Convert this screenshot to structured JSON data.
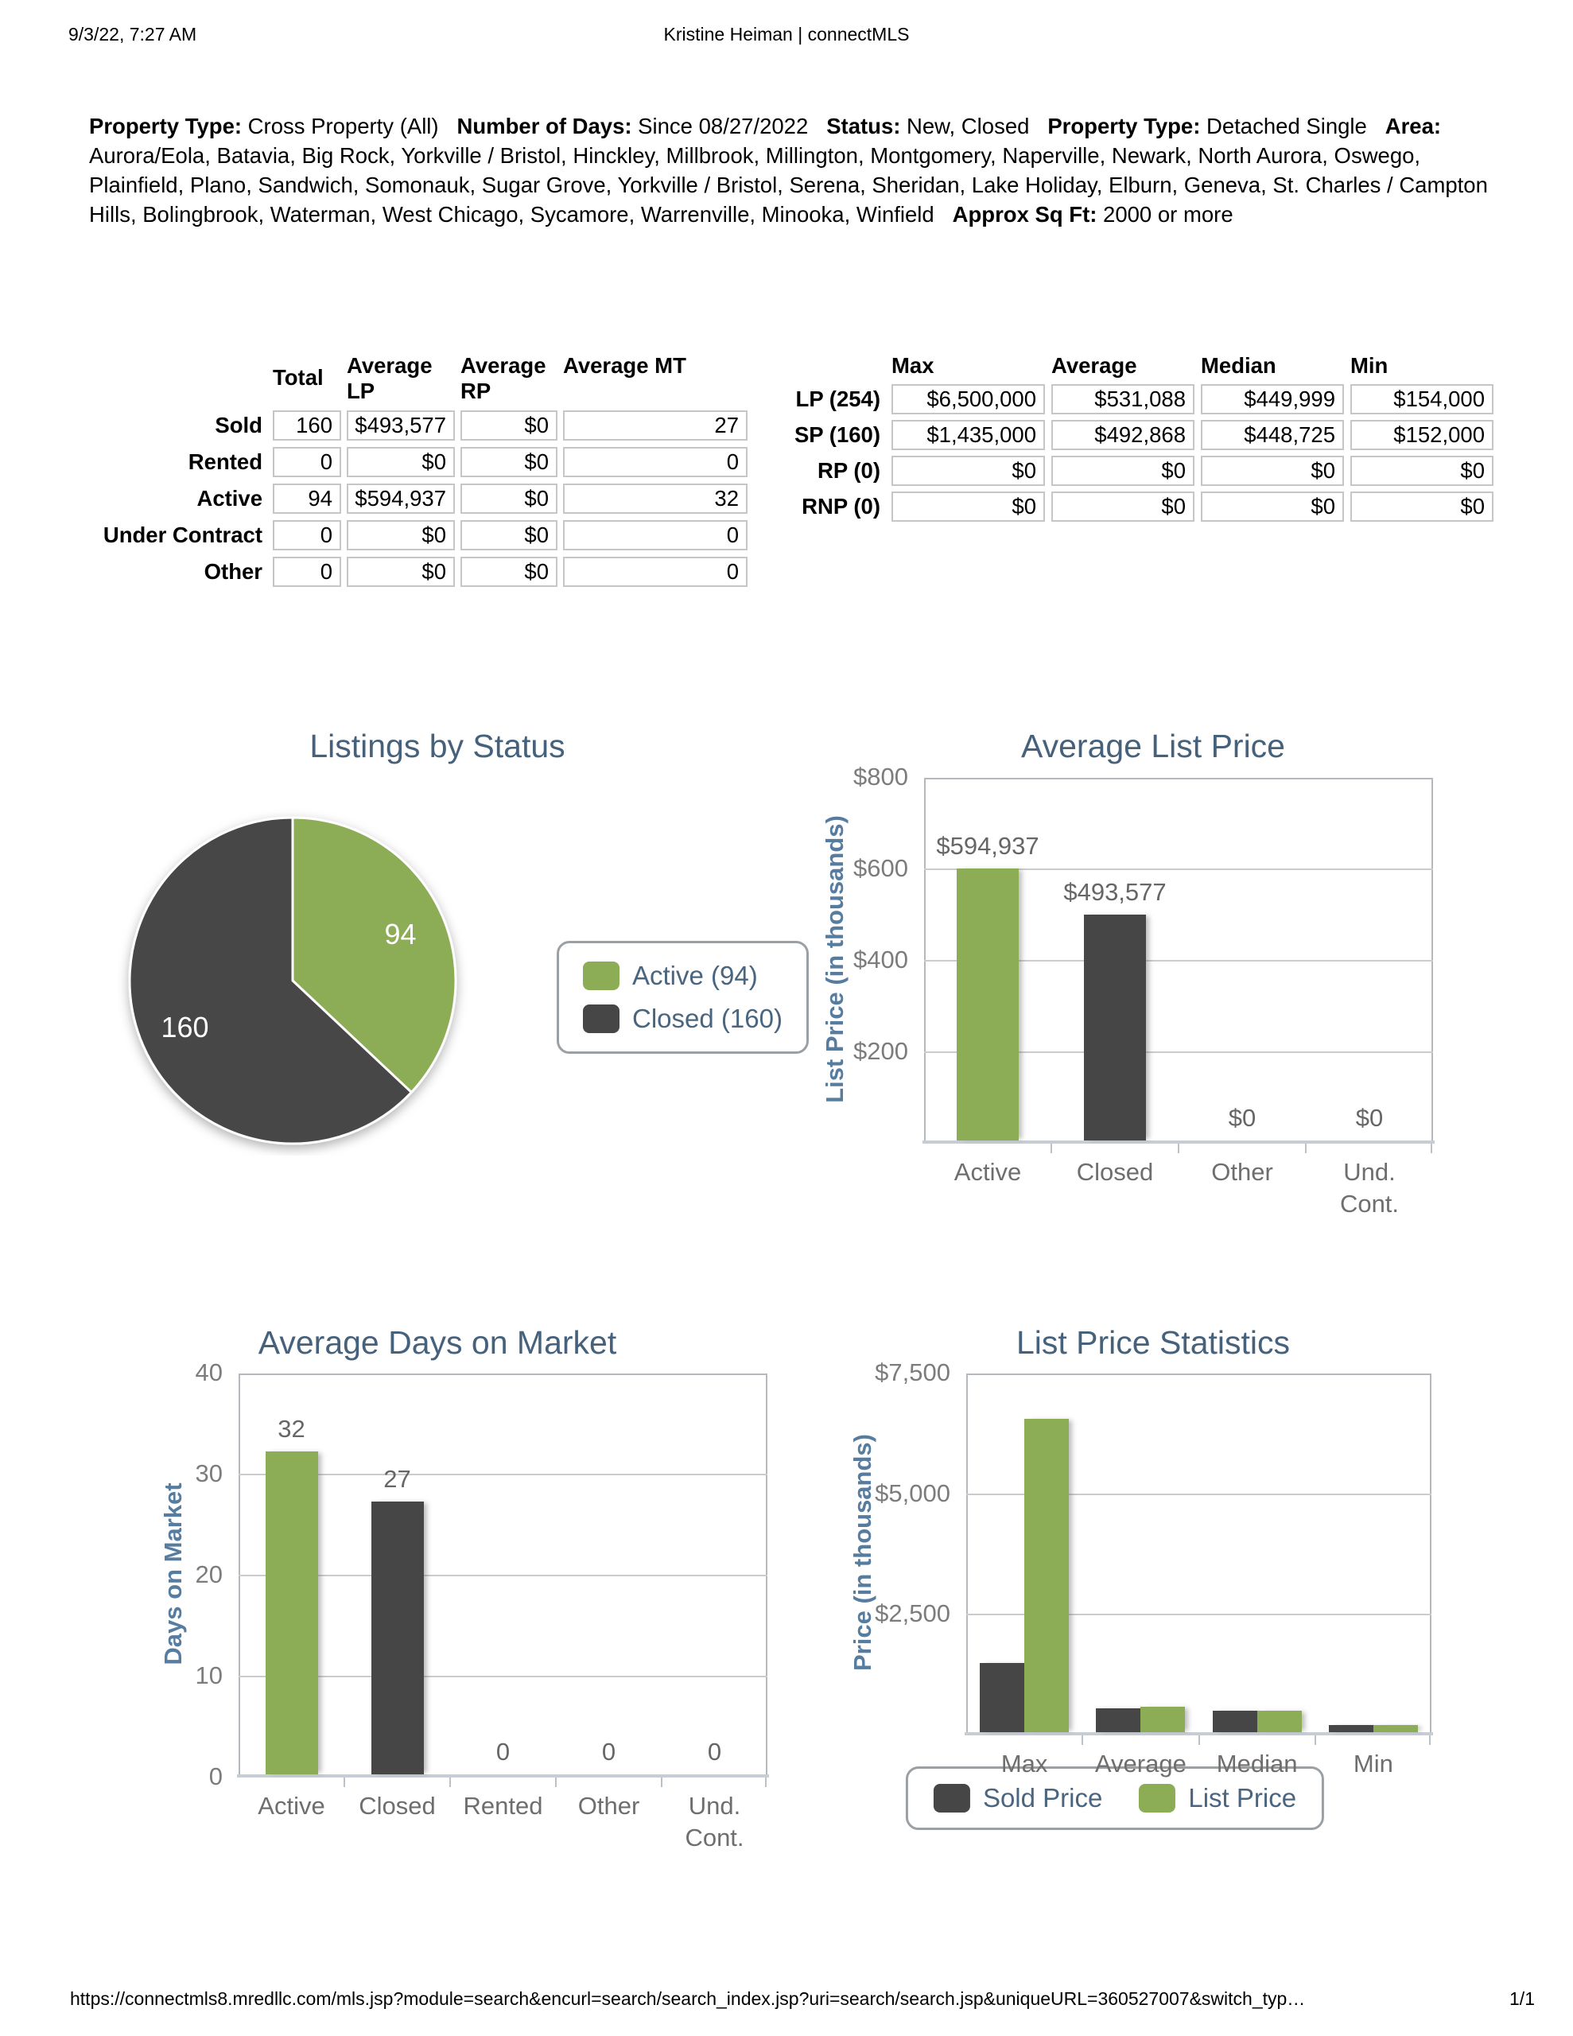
{
  "header": {
    "datetime": "9/3/22, 7:27 AM",
    "user_app": "Kristine Heiman | connectMLS"
  },
  "criteria": [
    {
      "label": "Property Type:",
      "value": "Cross Property (All)"
    },
    {
      "label": "Number of Days:",
      "value": "Since 08/27/2022"
    },
    {
      "label": "Status:",
      "value": "New, Closed"
    },
    {
      "label": "Property Type:",
      "value": "Detached Single"
    },
    {
      "label": "Area:",
      "value": "Aurora/Eola, Batavia, Big Rock, Yorkville / Bristol, Hinckley, Millbrook, Millington, Montgomery, Naperville, Newark, North Aurora, Oswego, Plainfield, Plano, Sandwich, Somonauk, Sugar Grove, Yorkville / Bristol, Serena, Sheridan, Lake Holiday, Elburn, Geneva, St. Charles / Campton Hills, Bolingbrook, Waterman, West Chicago, Sycamore, Warrenville, Minooka, Winfield"
    },
    {
      "label": "Approx Sq Ft:",
      "value": "2000 or more"
    }
  ],
  "status_table": {
    "columns": [
      "Total",
      "Average LP",
      "Average RP",
      "Average MT"
    ],
    "rows": [
      {
        "label": "Sold",
        "values": [
          "160",
          "$493,577",
          "$0",
          "27"
        ]
      },
      {
        "label": "Rented",
        "values": [
          "0",
          "$0",
          "$0",
          "0"
        ]
      },
      {
        "label": "Active",
        "values": [
          "94",
          "$594,937",
          "$0",
          "32"
        ]
      },
      {
        "label": "Under Contract",
        "values": [
          "0",
          "$0",
          "$0",
          "0"
        ]
      },
      {
        "label": "Other",
        "values": [
          "0",
          "$0",
          "$0",
          "0"
        ]
      }
    ]
  },
  "price_table": {
    "columns": [
      "Max",
      "Average",
      "Median",
      "Min"
    ],
    "rows": [
      {
        "label": "LP (254)",
        "values": [
          "$6,500,000",
          "$531,088",
          "$449,999",
          "$154,000"
        ]
      },
      {
        "label": "SP (160)",
        "values": [
          "$1,435,000",
          "$492,868",
          "$448,725",
          "$152,000"
        ]
      },
      {
        "label": "RP (0)",
        "values": [
          "$0",
          "$0",
          "$0",
          "$0"
        ]
      },
      {
        "label": "RNP (0)",
        "values": [
          "$0",
          "$0",
          "$0",
          "$0"
        ]
      }
    ]
  },
  "colors": {
    "green": "#8DAC56",
    "dark": "#464646",
    "title_blue": "#45617C",
    "axis_blue": "#567CA0",
    "tick_gray": "#7c7c7c"
  },
  "chart_data": [
    {
      "type": "pie",
      "title": "Listings by Status",
      "labels": [
        "Active",
        "Closed"
      ],
      "values": [
        94,
        160
      ],
      "slice_labels": [
        "94",
        "160"
      ],
      "colors": [
        "green",
        "dark"
      ],
      "legend": [
        {
          "label": "Active (94)",
          "color": "green"
        },
        {
          "label": "Closed (160)",
          "color": "dark"
        }
      ],
      "legend_position": "right"
    },
    {
      "type": "bar",
      "title": "Average List Price",
      "ylabel": "List Price (in thousands)",
      "categories": [
        "Active",
        "Closed",
        "Other",
        "Und.\nCont."
      ],
      "values": [
        594.937,
        493.577,
        0,
        0
      ],
      "data_labels": [
        "$594,937",
        "$493,577",
        "$0",
        "$0"
      ],
      "colors": [
        "green",
        "dark",
        "green",
        "dark"
      ],
      "ylim": [
        0,
        800
      ],
      "yticks": [
        {
          "v": 200,
          "t": "$200"
        },
        {
          "v": 400,
          "t": "$400"
        },
        {
          "v": 600,
          "t": "$600"
        },
        {
          "v": 800,
          "t": "$800"
        }
      ],
      "grid": true
    },
    {
      "type": "bar",
      "title": "Average Days on Market",
      "ylabel": "Days on Market",
      "categories": [
        "Active",
        "Closed",
        "Rented",
        "Other",
        "Und.\nCont."
      ],
      "values": [
        32,
        27,
        0,
        0,
        0
      ],
      "data_labels": [
        "32",
        "27",
        "0",
        "0",
        "0"
      ],
      "colors": [
        "green",
        "dark",
        "green",
        "dark",
        "green"
      ],
      "ylim": [
        0,
        40
      ],
      "yticks": [
        {
          "v": 0,
          "t": "0"
        },
        {
          "v": 10,
          "t": "10"
        },
        {
          "v": 20,
          "t": "20"
        },
        {
          "v": 30,
          "t": "30"
        },
        {
          "v": 40,
          "t": "40"
        }
      ],
      "grid": true
    },
    {
      "type": "grouped_bar",
      "title": "List Price Statistics",
      "ylabel": "Price (in thousands)",
      "categories": [
        "Max",
        "Average",
        "Median",
        "Min"
      ],
      "series": [
        {
          "name": "Sold Price",
          "color": "dark",
          "values": [
            1435,
            492.868,
            448.725,
            152
          ]
        },
        {
          "name": "List Price",
          "color": "green",
          "values": [
            6500,
            531.088,
            449.999,
            154
          ]
        }
      ],
      "ylim": [
        0,
        7500
      ],
      "yticks": [
        {
          "v": 2500,
          "t": "$2,500"
        },
        {
          "v": 5000,
          "t": "$5,000"
        },
        {
          "v": 7500,
          "t": "$7,500"
        }
      ],
      "grid": true,
      "legend_position": "bottom"
    }
  ],
  "footer": {
    "url": "https://connectmls8.mredllc.com/mls.jsp?module=search&encurl=search/search_index.jsp?uri=search/search.jsp&uniqueURL=360527007&switch_typ…",
    "page": "1/1"
  }
}
